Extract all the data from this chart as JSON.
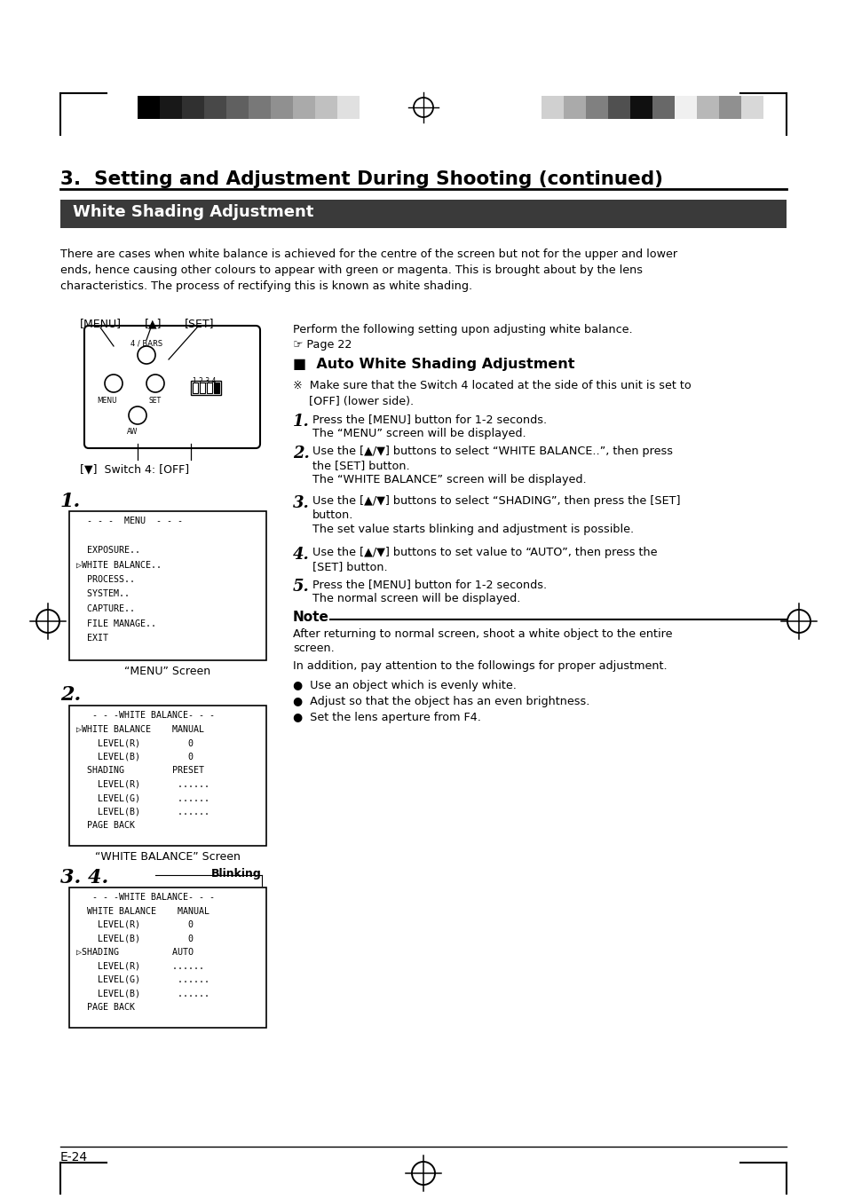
{
  "page_bg": "#ffffff",
  "title": "3.  Setting and Adjustment During Shooting (continued)",
  "section_header": "White Shading Adjustment",
  "section_header_bg": "#3a3a3a",
  "section_header_color": "#ffffff",
  "intro_text": "There are cases when white balance is achieved for the centre of the screen but not for the upper and lower\nends, hence causing other colours to appear with green or magenta. This is brought about by the lens\ncharacteristics. The process of rectifying this is known as white shading.",
  "left_label_menu": "[MENU]",
  "left_label_up": "[▲]",
  "left_label_set": "[SET]",
  "left_label_down": "[▼]  Switch 4: [OFF]",
  "perform_text": "Perform the following setting upon adjusting white balance.",
  "page_ref": "☞ Page 22",
  "auto_header": "■  Auto White Shading Adjustment",
  "note_symbol": "※",
  "note_switch_line1": "Make sure that the Switch 4 located at the side of this unit is set to",
  "note_switch_line2": "[OFF] (lower side).",
  "step1_num": "1.",
  "step1a": "Press the [MENU] button for 1-2 seconds.",
  "step1b": "The “MENU” screen will be displayed.",
  "step2_num": "2.",
  "step2a": "Use the [▲/▼] buttons to select “WHITE BALANCE..”, then press",
  "step2b": "the [SET] button.",
  "step2c": "The “WHITE BALANCE” screen will be displayed.",
  "step3_num": "3.",
  "step3a": "Use the [▲/▼] buttons to select “SHADING”, then press the [SET]",
  "step3b": "button.",
  "step3c": "The set value starts blinking and adjustment is possible.",
  "step4_num": "4.",
  "step4a": "Use the [▲/▼] buttons to set value to “AUTO”, then press the",
  "step4b": "[SET] button.",
  "step5_num": "5.",
  "step5a": "Press the [MENU] button for 1-2 seconds.",
  "step5b": "The normal screen will be displayed.",
  "note_title": "Note",
  "note_text1a": "After returning to normal screen, shoot a white object to the entire",
  "note_text1b": "screen.",
  "note_text2": "In addition, pay attention to the followings for proper adjustment.",
  "bullet1": "●  Use an object which is evenly white.",
  "bullet2": "●  Adjust so that the object has an even brightness.",
  "bullet3": "●  Set the lens aperture from F4.",
  "step_label_1": "1.",
  "step_label_2": "2.",
  "step_label_34": "3. 4.",
  "blinking_label": "Blinking",
  "menu_screen_label": "“MENU” Screen",
  "wb_screen_label": "“WHITE BALANCE” Screen",
  "menu_line1": "  - - -  MENU  - - -",
  "menu_line2": "",
  "menu_line3": "  EXPOSURE..",
  "menu_line4": "▷WHITE BALANCE..",
  "menu_line5": "  PROCESS..",
  "menu_line6": "  SYSTEM..",
  "menu_line7": "  CAPTURE..",
  "menu_line8": "  FILE MANAGE..",
  "menu_line9": "  EXIT",
  "wb_line1": "   - - -WHITE BALANCE- - -",
  "wb_line2": "▷WHITE BALANCE    MANUAL",
  "wb_line3": "    LEVEL(R)         0",
  "wb_line4": "    LEVEL(B)         0",
  "wb_line5": "  SHADING         PRESET",
  "wb_line6": "    LEVEL(R)       ......",
  "wb_line7": "    LEVEL(G)       ......",
  "wb_line8": "    LEVEL(B)       ......",
  "wb_line9": "  PAGE BACK",
  "wb2_line1": "   - - -WHITE BALANCE- - -",
  "wb2_line2": "  WHITE BALANCE    MANUAL",
  "wb2_line3": "    LEVEL(R)         0",
  "wb2_line4": "    LEVEL(B)         0",
  "wb2_line5": "▷SHADING          AUTO",
  "wb2_line6": "    LEVEL(R)      ......",
  "wb2_line7": "    LEVEL(G)       ......",
  "wb2_line8": "    LEVEL(B)       ......",
  "wb2_line9": "  PAGE BACK",
  "footer_text": "E-24",
  "left_strip_colors": [
    "#000000",
    "#181818",
    "#303030",
    "#484848",
    "#606060",
    "#787878",
    "#909090",
    "#aaaaaa",
    "#c0c0c0",
    "#e0e0e0"
  ],
  "right_strip_colors": [
    "#d0d0d0",
    "#aaaaaa",
    "#808080",
    "#505050",
    "#101010",
    "#686868",
    "#f0f0f0",
    "#b8b8b8",
    "#909090",
    "#d8d8d8"
  ]
}
